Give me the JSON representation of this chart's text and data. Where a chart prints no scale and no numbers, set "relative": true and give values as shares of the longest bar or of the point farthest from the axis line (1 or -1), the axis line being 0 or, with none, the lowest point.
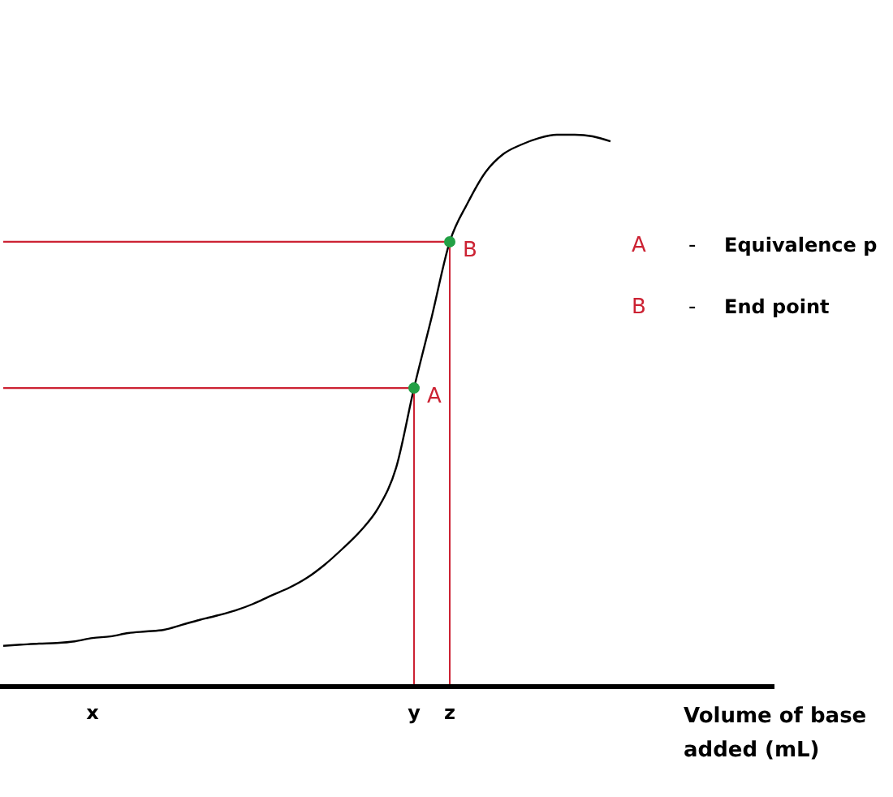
{
  "chart_data": {
    "type": "line",
    "relative": true,
    "xlabel": "Volume of base added (mL)",
    "categories": [
      null,
      null,
      null,
      null,
      null,
      "x",
      null,
      null,
      null,
      null,
      null,
      null,
      null,
      null,
      null,
      null,
      null,
      null,
      null,
      null,
      null,
      null,
      null,
      "y",
      null,
      "z",
      null,
      null,
      null,
      null,
      null,
      null,
      null,
      null,
      null,
      null,
      null,
      null,
      null,
      null,
      null,
      null,
      null,
      null
    ],
    "series": [
      {
        "color": "#000000",
        "values": [
          0.074,
          0.076,
          0.078,
          0.079,
          0.082,
          0.088,
          0.091,
          0.097,
          0.1,
          0.103,
          0.112,
          0.121,
          0.129,
          0.138,
          0.15,
          0.165,
          0.179,
          0.197,
          0.221,
          0.25,
          0.282,
          0.324,
          0.397,
          0.541,
          0.671,
          0.806,
          0.876,
          0.932,
          0.965,
          0.982,
          0.994,
          1,
          1,
          0.997,
          0.988,
          null,
          null,
          null,
          null,
          null,
          null,
          null,
          null,
          null
        ]
      },
      {
        "color": "#cc2233",
        "values": [
          0.541,
          0.541,
          0.541,
          0.541,
          0.541,
          0.541,
          0.541,
          0.541,
          0.541,
          0.541,
          0.541,
          0.541,
          0.541,
          0.541,
          0.541,
          0.541,
          0.541,
          0.541,
          0.541,
          0.541,
          0.541,
          0.541,
          0.541,
          0.541,
          null,
          null,
          null,
          null,
          null,
          null,
          null,
          null,
          null,
          null,
          null,
          null,
          null,
          null,
          null,
          null,
          null,
          null,
          null,
          null
        ]
      },
      {
        "color": "#cc2233",
        "values": [
          0.806,
          0.806,
          0.806,
          0.806,
          0.806,
          0.806,
          0.806,
          0.806,
          0.806,
          0.806,
          0.806,
          0.806,
          0.806,
          0.806,
          0.806,
          0.806,
          0.806,
          0.806,
          0.806,
          0.806,
          0.806,
          0.806,
          0.806,
          0.806,
          0.806,
          0.806,
          null,
          null,
          null,
          null,
          null,
          null,
          null,
          null,
          null,
          null,
          null,
          null,
          null,
          null,
          null,
          null,
          null,
          null
        ]
      },
      {
        "type": "lollipop",
        "color": "#cc2233",
        "colors": [
          "#22a045",
          "#22a045"
        ],
        "x": [
          "y",
          "z"
        ],
        "values": [
          0.541,
          0.806
        ]
      }
    ],
    "annotations": [
      {
        "text": "A",
        "x": "y",
        "y": 0.541
      },
      {
        "text": "B",
        "x": "z",
        "y": 0.806
      },
      "A  -  Equivalence p",
      "B  -  End point"
    ]
  }
}
